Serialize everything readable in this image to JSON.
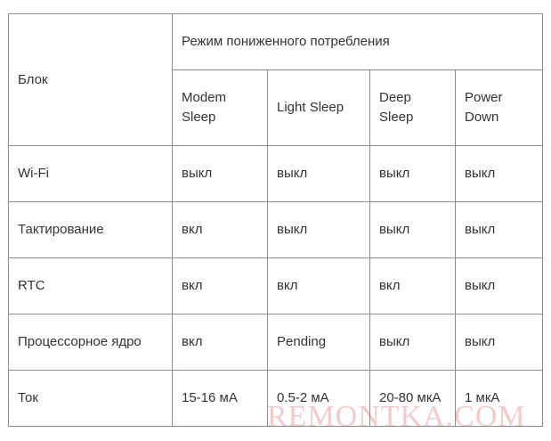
{
  "table": {
    "block_header": "Блок",
    "group_header": "Режим пониженного потребления",
    "modes": [
      "Modem Sleep",
      "Light Sleep",
      "Deep Sleep",
      "Power Down"
    ],
    "rows": [
      {
        "label": "Wi-Fi",
        "values": [
          "выкл",
          "выкл",
          "выкл",
          "выкл"
        ]
      },
      {
        "label": "Тактирование",
        "values": [
          "вкл",
          "выкл",
          "выкл",
          "выкл"
        ]
      },
      {
        "label": "RTC",
        "values": [
          "вкл",
          "вкл",
          "вкл",
          "выкл"
        ]
      },
      {
        "label": "Процессорное ядро",
        "values": [
          "вкл",
          "Pending",
          "выкл",
          "выкл"
        ]
      },
      {
        "label": "Ток",
        "values": [
          "15-16 мА",
          "0.5-2 мА",
          "20-80 мкА",
          "1 мкА"
        ]
      }
    ]
  },
  "watermark": {
    "text": "REMONTKA.COM",
    "color": "#cd5c5c"
  }
}
